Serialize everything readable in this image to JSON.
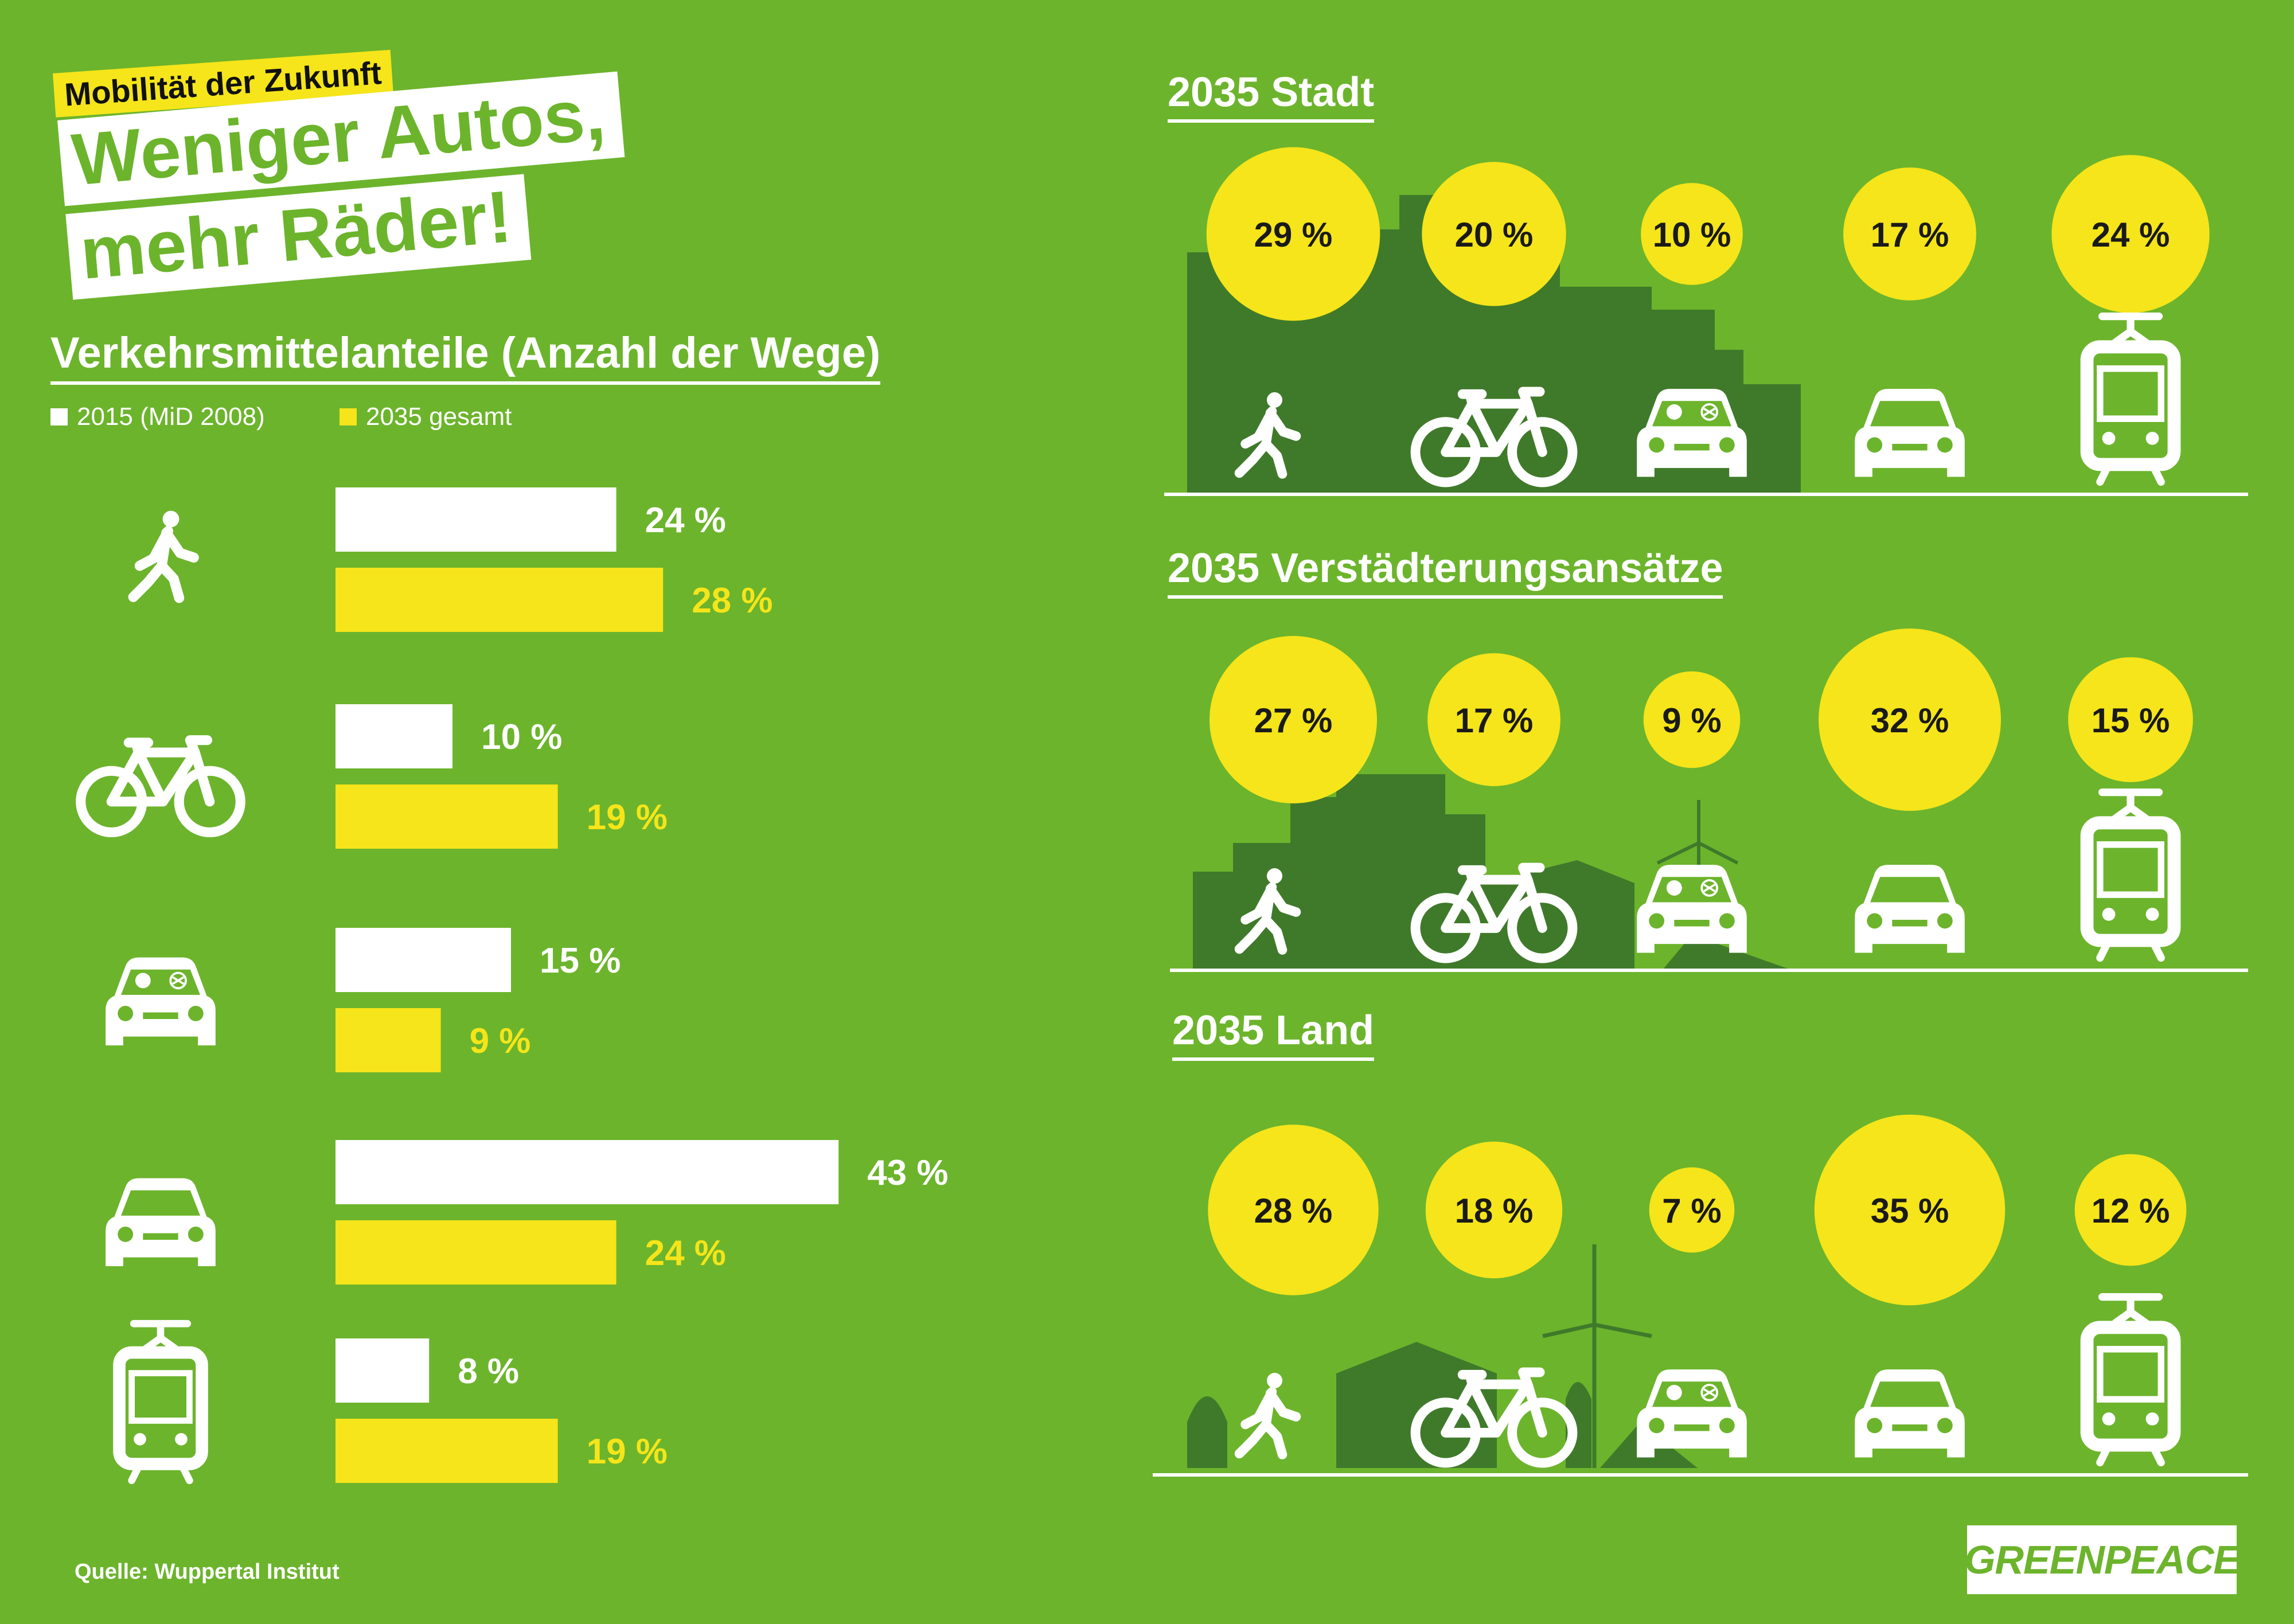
{
  "header": {
    "kicker": "Mobilität der Zukunft",
    "headline_line1": "Weniger Autos,",
    "headline_line2": "mehr Räder!"
  },
  "colors": {
    "background": "#6cb42c",
    "yellow": "#f5e51a",
    "white": "#ffffff",
    "dark_green": "#3f7a2a"
  },
  "chart_data": [
    {
      "type": "bar",
      "orientation": "horizontal",
      "title": "Verkehrsmittelanteile (Anzahl der Wege)",
      "categories": [
        "walk-icon",
        "bicycle-icon",
        "car-passenger-icon",
        "car-icon",
        "tram-icon"
      ],
      "series": [
        {
          "name": "2015 (MiD 2008)",
          "color": "#ffffff",
          "values": [
            24,
            10,
            15,
            43,
            8
          ],
          "labels": [
            "24 %",
            "10 %",
            "15 %",
            "43 %",
            "8 %"
          ]
        },
        {
          "name": "2035 gesamt",
          "color": "#f5e51a",
          "values": [
            28,
            19,
            9,
            24,
            19
          ],
          "labels": [
            "28 %",
            "19 %",
            "9 %",
            "24 %",
            "19 %"
          ]
        }
      ],
      "legend": "top-left",
      "grid": false
    },
    {
      "type": "bubble",
      "title": "2035 Stadt",
      "categories": [
        "walk-icon",
        "bicycle-icon",
        "car-passenger-icon",
        "car-icon",
        "tram-icon"
      ],
      "values": [
        29,
        20,
        10,
        17,
        24
      ],
      "labels": [
        "29 %",
        "20 %",
        "10 %",
        "17 %",
        "24 %"
      ]
    },
    {
      "type": "bubble",
      "title": "2035 Verstädterungsansätze",
      "categories": [
        "walk-icon",
        "bicycle-icon",
        "car-passenger-icon",
        "car-icon",
        "tram-icon"
      ],
      "values": [
        27,
        17,
        9,
        32,
        15
      ],
      "labels": [
        "27 %",
        "17 %",
        "9 %",
        "32 %",
        "15 %"
      ]
    },
    {
      "type": "bubble",
      "title": "2035 Land",
      "categories": [
        "walk-icon",
        "bicycle-icon",
        "car-passenger-icon",
        "car-icon",
        "tram-icon"
      ],
      "values": [
        28,
        18,
        7,
        35,
        12
      ],
      "labels": [
        "28 %",
        "18 %",
        "7 %",
        "35 %",
        "12 %"
      ]
    }
  ],
  "footer": {
    "source": "Quelle: Wuppertal Institut",
    "logo": "GREENPEACE"
  }
}
